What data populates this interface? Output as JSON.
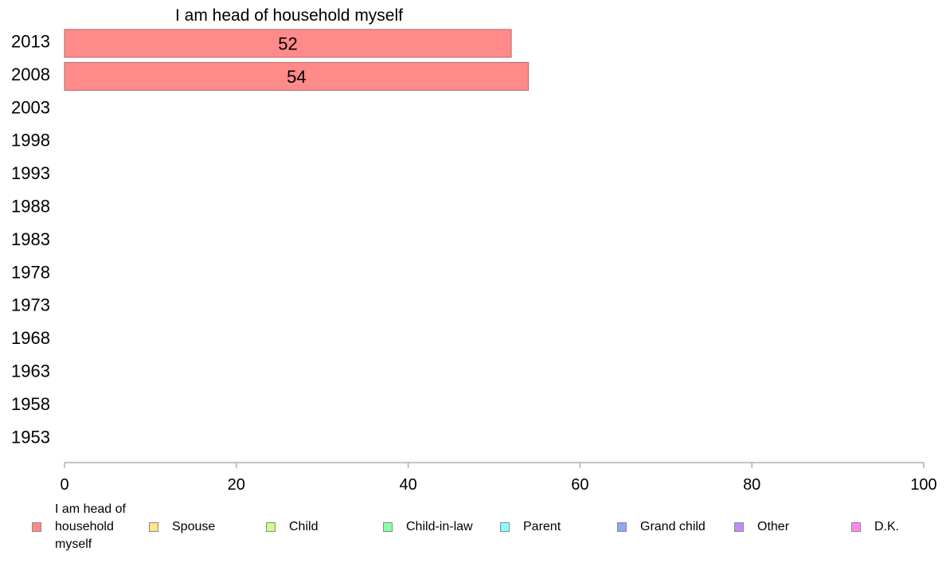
{
  "chart_data": {
    "type": "bar",
    "orientation": "horizontal",
    "title": "I am head of household myself",
    "categories": [
      "2013",
      "2008",
      "2003",
      "1998",
      "1993",
      "1988",
      "1983",
      "1978",
      "1973",
      "1968",
      "1963",
      "1958",
      "1953"
    ],
    "series": [
      {
        "name": "I am head of household myself",
        "color": "#ff8a8a",
        "values": [
          52,
          54,
          null,
          null,
          null,
          null,
          null,
          null,
          null,
          null,
          null,
          null,
          null
        ],
        "data_labels": [
          "52",
          "54",
          "",
          "",
          "",
          "",
          "",
          "",
          "",
          "",
          "",
          "",
          ""
        ]
      }
    ],
    "xlim": [
      0,
      100
    ],
    "x_ticks": [
      "0",
      "20",
      "40",
      "60",
      "80",
      "100"
    ],
    "grid": false,
    "legend_position": "bottom"
  },
  "legend": [
    {
      "label": "I am head of household myself",
      "color": "#ff8a8a"
    },
    {
      "label": "Spouse",
      "color": "#ffe58a"
    },
    {
      "label": "Child",
      "color": "#ccff8a"
    },
    {
      "label": "Child-in-law",
      "color": "#8affa6"
    },
    {
      "label": "Parent",
      "color": "#8affff"
    },
    {
      "label": "Grand child",
      "color": "#8aa6ff"
    },
    {
      "label": "Other",
      "color": "#c18aff"
    },
    {
      "label": "D.K.",
      "color": "#ff8aef"
    }
  ]
}
